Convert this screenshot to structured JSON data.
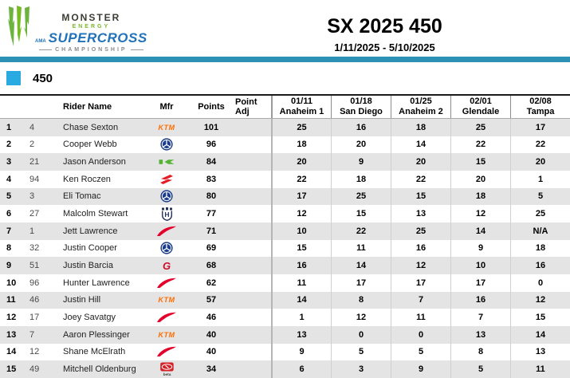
{
  "logo": {
    "brand_top": "MONSTER",
    "brand_mid": "ENERGY",
    "ama": "AMA",
    "series": "SUPERCROSS",
    "championship": "CHAMPIONSHIP"
  },
  "header": {
    "title": "SX 2025 450",
    "date_range": "1/11/2025 - 5/10/2025"
  },
  "class_section": {
    "label": "450"
  },
  "colors": {
    "teal_bar": "#2c91b4",
    "class_square": "#29abe2",
    "row_alt": "#e4e4e4",
    "ktm_orange": "#ff6e00",
    "yamaha_blue": "#1b3c8c",
    "kawasaki_green": "#54b335",
    "suzuki_red": "#e21e26",
    "husqvarna_navy": "#24335b",
    "honda_red": "#e4002b",
    "gasgas_red": "#ce0e2d",
    "beta_red": "#d42127"
  },
  "icons": {
    "ktm_text": "KTM",
    "gasgas_text": "G",
    "husqvarna_text": "H",
    "beta_text": "beta"
  },
  "table": {
    "columns": {
      "rider": "Rider Name",
      "mfr": "Mfr",
      "points": "Points",
      "point_adj": "Point Adj"
    },
    "races": [
      {
        "date": "01/11",
        "venue": "Anaheim 1"
      },
      {
        "date": "01/18",
        "venue": "San Diego"
      },
      {
        "date": "01/25",
        "venue": "Anaheim 2"
      },
      {
        "date": "02/01",
        "venue": "Glendale"
      },
      {
        "date": "02/08",
        "venue": "Tampa"
      }
    ],
    "rows": [
      {
        "rank": "1",
        "num": "4",
        "name": "Chase Sexton",
        "mfr": "ktm",
        "mfr_name": "KTM",
        "points": "101",
        "adj": "",
        "results": [
          "25",
          "16",
          "18",
          "25",
          "17"
        ]
      },
      {
        "rank": "2",
        "num": "2",
        "name": "Cooper Webb",
        "mfr": "yamaha",
        "mfr_name": "Yamaha",
        "points": "96",
        "adj": "",
        "results": [
          "18",
          "20",
          "14",
          "22",
          "22"
        ]
      },
      {
        "rank": "3",
        "num": "21",
        "name": "Jason Anderson",
        "mfr": "kawasaki",
        "mfr_name": "Kawasaki",
        "points": "84",
        "adj": "",
        "results": [
          "20",
          "9",
          "20",
          "15",
          "20"
        ]
      },
      {
        "rank": "4",
        "num": "94",
        "name": "Ken Roczen",
        "mfr": "suzuki",
        "mfr_name": "Suzuki",
        "points": "83",
        "adj": "",
        "results": [
          "22",
          "18",
          "22",
          "20",
          "1"
        ]
      },
      {
        "rank": "5",
        "num": "3",
        "name": "Eli Tomac",
        "mfr": "yamaha",
        "mfr_name": "Yamaha",
        "points": "80",
        "adj": "",
        "results": [
          "17",
          "25",
          "15",
          "18",
          "5"
        ]
      },
      {
        "rank": "6",
        "num": "27",
        "name": "Malcolm Stewart",
        "mfr": "husqvarna",
        "mfr_name": "Husqvarna",
        "points": "77",
        "adj": "",
        "results": [
          "12",
          "15",
          "13",
          "12",
          "25"
        ]
      },
      {
        "rank": "7",
        "num": "1",
        "name": "Jett Lawrence",
        "mfr": "honda",
        "mfr_name": "Honda",
        "points": "71",
        "adj": "",
        "results": [
          "10",
          "22",
          "25",
          "14",
          "N/A"
        ]
      },
      {
        "rank": "8",
        "num": "32",
        "name": "Justin Cooper",
        "mfr": "yamaha",
        "mfr_name": "Yamaha",
        "points": "69",
        "adj": "",
        "results": [
          "15",
          "11",
          "16",
          "9",
          "18"
        ]
      },
      {
        "rank": "9",
        "num": "51",
        "name": "Justin Barcia",
        "mfr": "gasgas",
        "mfr_name": "GasGas",
        "points": "68",
        "adj": "",
        "results": [
          "16",
          "14",
          "12",
          "10",
          "16"
        ]
      },
      {
        "rank": "10",
        "num": "96",
        "name": "Hunter Lawrence",
        "mfr": "honda",
        "mfr_name": "Honda",
        "points": "62",
        "adj": "",
        "results": [
          "11",
          "17",
          "17",
          "17",
          "0"
        ]
      },
      {
        "rank": "11",
        "num": "46",
        "name": "Justin Hill",
        "mfr": "ktm",
        "mfr_name": "KTM",
        "points": "57",
        "adj": "",
        "results": [
          "14",
          "8",
          "7",
          "16",
          "12"
        ]
      },
      {
        "rank": "12",
        "num": "17",
        "name": "Joey Savatgy",
        "mfr": "honda",
        "mfr_name": "Honda",
        "points": "46",
        "adj": "",
        "results": [
          "1",
          "12",
          "11",
          "7",
          "15"
        ]
      },
      {
        "rank": "13",
        "num": "7",
        "name": "Aaron Plessinger",
        "mfr": "ktm",
        "mfr_name": "KTM",
        "points": "40",
        "adj": "",
        "results": [
          "13",
          "0",
          "0",
          "13",
          "14"
        ]
      },
      {
        "rank": "14",
        "num": "12",
        "name": "Shane McElrath",
        "mfr": "honda",
        "mfr_name": "Honda",
        "points": "40",
        "adj": "",
        "results": [
          "9",
          "5",
          "5",
          "8",
          "13"
        ]
      },
      {
        "rank": "15",
        "num": "49",
        "name": "Mitchell Oldenburg",
        "mfr": "beta",
        "mfr_name": "Beta",
        "points": "34",
        "adj": "",
        "results": [
          "6",
          "3",
          "9",
          "5",
          "11"
        ]
      }
    ]
  }
}
